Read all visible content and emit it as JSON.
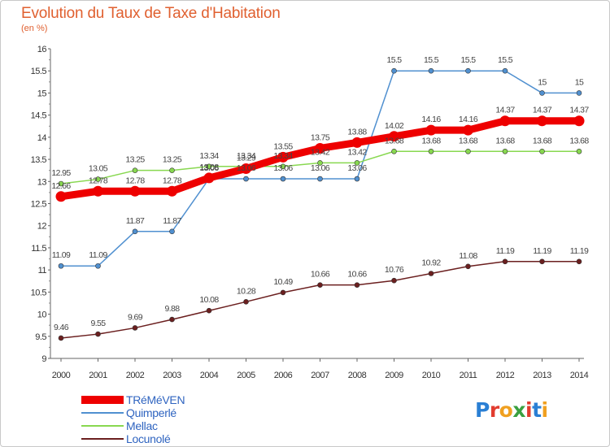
{
  "header": {
    "title": "Evolution du Taux de Taxe d'Habitation",
    "subtitle": "(en %)"
  },
  "logo": {
    "text": "Proxiti",
    "letter_colors": [
      "#2a7fd4",
      "#e23c2f",
      "#f0a020",
      "#3aa040",
      "#e23c2f",
      "#2a7fd4",
      "#f0a020"
    ]
  },
  "chart_data": {
    "type": "line",
    "title": "Evolution du Taux de Taxe d'Habitation",
    "subtitle": "(en %)",
    "xlabel": "",
    "ylabel": "",
    "categories": [
      "2000",
      "2001",
      "2002",
      "2003",
      "2004",
      "2005",
      "2006",
      "2007",
      "2008",
      "2009",
      "2010",
      "2011",
      "2012",
      "2013",
      "2014"
    ],
    "ylim": [
      9,
      16
    ],
    "yticks": [
      "9",
      "9.5",
      "10",
      "10.5",
      "11",
      "11.5",
      "12",
      "12.5",
      "13",
      "13.5",
      "14",
      "14.5",
      "15",
      "15.5",
      "16"
    ],
    "grid": false,
    "legend_position": "bottom-left",
    "series": [
      {
        "name": "TRéMéVEN",
        "color": "#ee0000",
        "values": [
          12.66,
          12.78,
          12.78,
          12.78,
          13.08,
          13.29,
          13.55,
          13.75,
          13.88,
          14.02,
          14.16,
          14.16,
          14.37,
          14.37,
          14.37
        ],
        "labels": [
          "12.66",
          "12.78",
          "12.78",
          "12.78",
          "13.08",
          "13.29",
          "13.55",
          "13.75",
          "13.88",
          "14.02",
          "14.16",
          "14.16",
          "14.37",
          "14.37",
          "14.37"
        ]
      },
      {
        "name": "Quimperlé",
        "color": "#5090d0",
        "values": [
          11.09,
          11.09,
          11.87,
          11.87,
          13.06,
          13.06,
          13.06,
          13.06,
          13.06,
          15.5,
          15.5,
          15.5,
          15.5,
          15,
          15
        ],
        "labels": [
          "11.09",
          "11.09",
          "11.87",
          "11.87",
          "13.06",
          "13.06",
          "13.06",
          "13.06",
          "13.06",
          "15.5",
          "15.5",
          "15.5",
          "15.5",
          "15",
          "15"
        ]
      },
      {
        "name": "Mellac",
        "color": "#88d850",
        "values": [
          12.95,
          13.05,
          13.25,
          13.25,
          13.34,
          13.34,
          13.34,
          13.42,
          13.42,
          13.68,
          13.68,
          13.68,
          13.68,
          13.68,
          13.68
        ],
        "labels": [
          "12.95",
          "13.05",
          "13.25",
          "13.25",
          "13.34",
          "13.34",
          "13.34",
          "13.42",
          "13.42",
          "13.68",
          "13.68",
          "13.68",
          "13.68",
          "13.68",
          "13.68"
        ]
      },
      {
        "name": "Locunolé",
        "color": "#6b1f1f",
        "values": [
          9.46,
          9.55,
          9.69,
          9.88,
          10.08,
          10.28,
          10.49,
          10.66,
          10.66,
          10.76,
          10.92,
          11.08,
          11.19,
          11.19,
          11.19
        ],
        "labels": [
          "9.46",
          "9.55",
          "9.69",
          "9.88",
          "10.08",
          "10.28",
          "10.49",
          "10.66",
          "10.66",
          "10.76",
          "10.92",
          "11.08",
          "11.19",
          "11.19",
          "11.19"
        ]
      }
    ]
  }
}
